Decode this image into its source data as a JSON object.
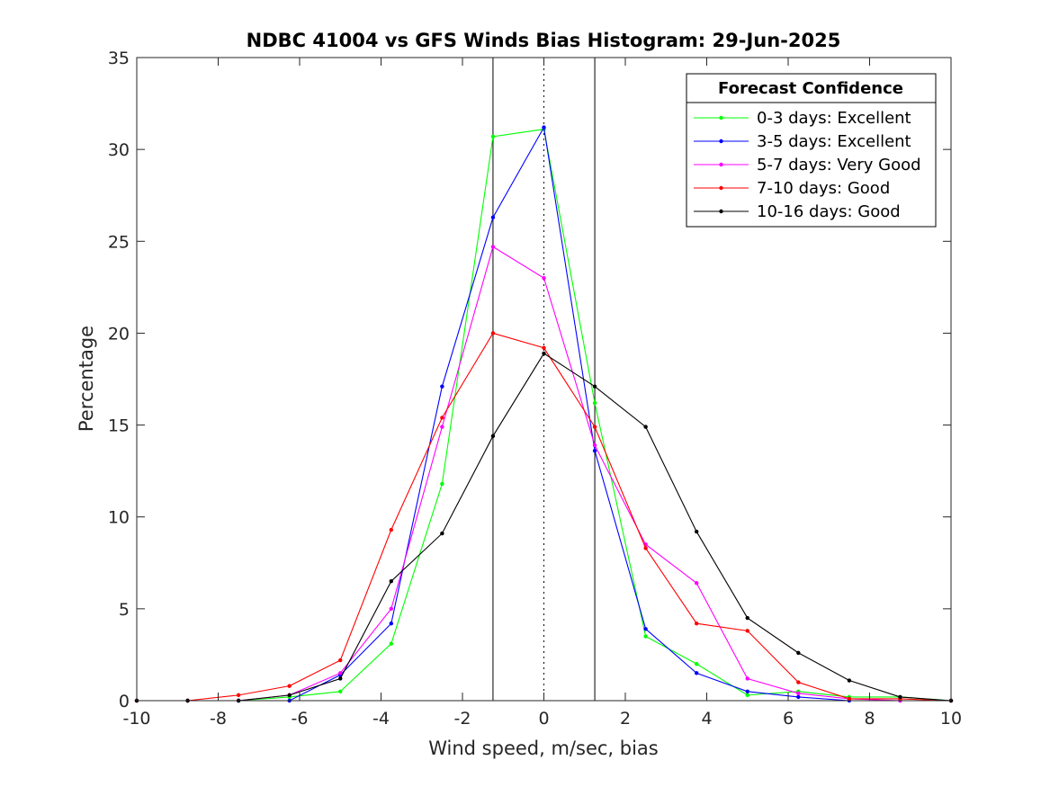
{
  "chart_data": {
    "type": "line",
    "title": "NDBC 41004 vs GFS Winds Bias Histogram: 29-Jun-2025",
    "xlabel": "Wind speed, m/sec, bias",
    "ylabel": "Percentage",
    "xlim": [
      -10,
      10
    ],
    "ylim": [
      0,
      35
    ],
    "xticks": [
      -10,
      -8,
      -6,
      -4,
      -2,
      0,
      2,
      4,
      6,
      8,
      10
    ],
    "yticks": [
      0,
      5,
      10,
      15,
      20,
      25,
      30,
      35
    ],
    "grid": false,
    "legend_title": "Forecast Confidence",
    "legend_position": "top-right",
    "vertical_lines": {
      "solid": [
        -1.25,
        1.25
      ],
      "dotted": [
        0
      ]
    },
    "x": [
      -10,
      -8.75,
      -7.5,
      -6.25,
      -5,
      -3.75,
      -2.5,
      -1.25,
      0,
      1.25,
      2.5,
      3.75,
      5,
      6.25,
      7.5,
      8.75,
      10
    ],
    "series": [
      {
        "name": "0-3 days: Excellent",
        "color": "#00ff00",
        "values": [
          0,
          0,
          0,
          0.2,
          0.5,
          3.1,
          11.8,
          30.7,
          31.1,
          16.2,
          3.5,
          2.0,
          0.3,
          0.5,
          0.2,
          0.2,
          0
        ]
      },
      {
        "name": "3-5 days: Excellent",
        "color": "#0000ff",
        "values": [
          0,
          0,
          0,
          0,
          1.4,
          4.2,
          17.1,
          26.3,
          31.2,
          13.6,
          3.9,
          1.5,
          0.5,
          0.2,
          0,
          0,
          0
        ]
      },
      {
        "name": "5-7 days: Very Good",
        "color": "#ff00ff",
        "values": [
          0,
          0,
          0,
          0.3,
          1.5,
          5.0,
          14.9,
          24.7,
          23.0,
          13.9,
          8.5,
          6.4,
          1.2,
          0.4,
          0.1,
          0,
          0
        ]
      },
      {
        "name": "7-10 days: Good",
        "color": "#ff0000",
        "values": [
          0,
          0,
          0.3,
          0.8,
          2.2,
          9.3,
          15.4,
          20.0,
          19.2,
          14.9,
          8.3,
          4.2,
          3.8,
          1.0,
          0.1,
          0.1,
          0
        ]
      },
      {
        "name": "10-16 days: Good",
        "color": "#000000",
        "values": [
          0,
          0,
          0,
          0.3,
          1.2,
          6.5,
          9.1,
          14.4,
          18.9,
          17.1,
          14.9,
          9.2,
          4.5,
          2.6,
          1.1,
          0.2,
          0
        ]
      }
    ]
  }
}
